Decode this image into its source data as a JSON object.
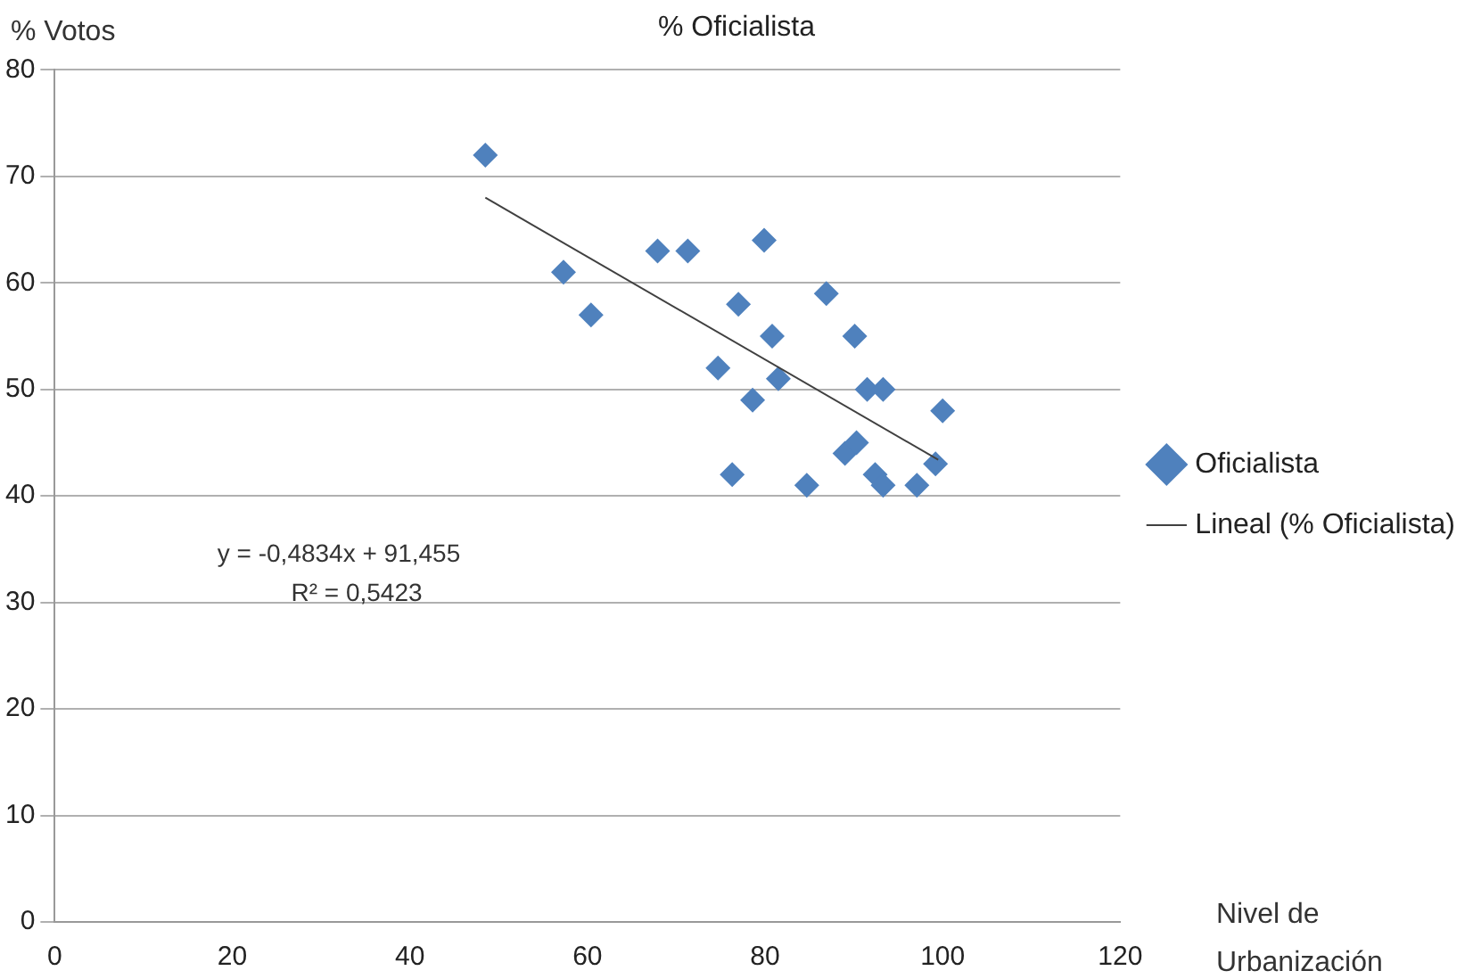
{
  "chart_data": {
    "type": "scatter",
    "title": "% Oficialista",
    "xlabel": "Nivel de Urbanización",
    "ylabel": "% Votos",
    "series": [
      {
        "name": "Oficialista",
        "color": "#4f81bd",
        "marker": "diamond",
        "x": [
          48.5,
          57.3,
          60.4,
          67.9,
          71.3,
          79.9,
          77,
          86.9,
          74.7,
          80.8,
          81.5,
          78.6,
          76.3,
          84.7,
          90.1,
          91.5,
          93.3,
          100,
          89,
          90.3,
          92.4,
          93.3,
          97.1,
          99.2
        ],
        "values": [
          72,
          61,
          57,
          63,
          63,
          64,
          58,
          59,
          52,
          55,
          51,
          49,
          42,
          41,
          55,
          50,
          50,
          48,
          44,
          45,
          42,
          41,
          41,
          43
        ]
      },
      {
        "name": "Lineal (% Oficialista)",
        "type": "line",
        "color": "#404040",
        "marker": "none",
        "x": [
          48.5,
          99.5
        ],
        "values": [
          68.0,
          43.4
        ]
      }
    ],
    "xlim": [
      0,
      120
    ],
    "xticks": [
      0,
      20,
      40,
      60,
      80,
      100,
      120
    ],
    "ylim": [
      0,
      80
    ],
    "yticks": [
      0,
      10,
      20,
      30,
      40,
      50,
      60,
      70,
      80
    ],
    "grid": "y",
    "legend": "right",
    "annotations": [
      "y = -0,4834x + 91,455",
      "R² = 0,5423"
    ]
  }
}
